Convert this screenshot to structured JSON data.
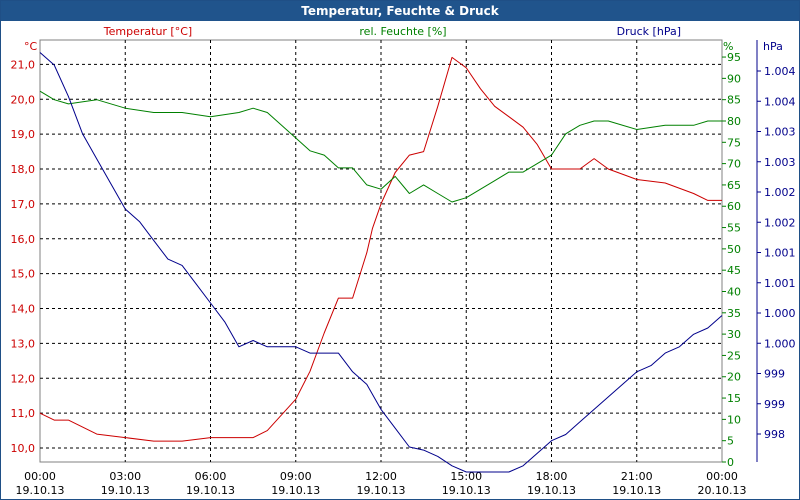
{
  "chart_data": {
    "type": "line",
    "title": "Temperatur, Feuchte & Druck",
    "x": {
      "labels": [
        [
          "00:00",
          "19.10.13"
        ],
        [
          "03:00",
          "19.10.13"
        ],
        [
          "06:00",
          "19.10.13"
        ],
        [
          "09:00",
          "19.10.13"
        ],
        [
          "12:00",
          "19.10.13"
        ],
        [
          "15:00",
          "19.10.13"
        ],
        [
          "18:00",
          "19.10.13"
        ],
        [
          "21:00",
          "19.10.13"
        ],
        [
          "00:00",
          "20.10.13"
        ]
      ],
      "range_hours": [
        0,
        24
      ]
    },
    "axes": {
      "temperature": {
        "unit": "°C",
        "label": "Temperatur [°C]",
        "ticks": [
          "10,0",
          "11,0",
          "12,0",
          "13,0",
          "14,0",
          "15,0",
          "16,0",
          "17,0",
          "18,0",
          "19,0",
          "20,0",
          "21,0"
        ],
        "range": [
          9.6,
          21.7
        ],
        "color": "#cc0000"
      },
      "humidity": {
        "unit": "%",
        "label": "rel. Feuchte [%]",
        "ticks": [
          "0",
          "5",
          "10",
          "15",
          "20",
          "25",
          "30",
          "35",
          "40",
          "45",
          "50",
          "55",
          "60",
          "65",
          "70",
          "75",
          "80",
          "85",
          "90",
          "95"
        ],
        "range": [
          0,
          99
        ],
        "color": "#008000"
      },
      "pressure": {
        "unit": "hPa",
        "label": "Druck [hPa]",
        "ticks": [
          "998",
          "999",
          "999",
          "1.000",
          "1.000",
          "1.001",
          "1.001",
          "1.002",
          "1.002",
          "1.003",
          "1.003",
          "1.004",
          "1.004"
        ],
        "range": [
          997.76,
          1004.5
        ],
        "color": "#00008b"
      }
    },
    "grid": true,
    "series": [
      {
        "name": "Temperatur [°C]",
        "color": "#cc0000",
        "x": [
          0,
          0.5,
          1,
          2,
          3,
          4,
          5,
          6,
          7,
          7.5,
          8,
          9,
          9.5,
          10,
          10.5,
          11,
          11.5,
          11.7,
          12,
          12.5,
          13,
          13.5,
          14,
          14.5,
          15,
          15.5,
          16,
          16.5,
          17,
          17.5,
          18,
          19,
          19.5,
          20,
          21,
          22,
          23,
          23.5,
          24
        ],
        "y": [
          11.0,
          10.8,
          10.8,
          10.4,
          10.3,
          10.2,
          10.2,
          10.3,
          10.3,
          10.3,
          10.5,
          11.4,
          12.2,
          13.3,
          14.3,
          14.3,
          15.6,
          16.3,
          17.0,
          17.9,
          18.4,
          18.5,
          19.8,
          21.2,
          20.9,
          20.3,
          19.8,
          19.5,
          19.2,
          18.7,
          18.0,
          18.0,
          18.3,
          18.0,
          17.7,
          17.6,
          17.3,
          17.1,
          17.1
        ]
      },
      {
        "name": "rel. Feuchte [%]",
        "color": "#008000",
        "x": [
          0,
          0.5,
          1,
          2,
          3,
          4,
          5,
          6,
          7,
          7.5,
          8,
          9,
          9.5,
          10,
          10.5,
          11,
          11.5,
          12,
          12.5,
          13,
          13.5,
          14,
          14.5,
          15,
          15.5,
          16,
          16.5,
          17,
          17.5,
          18,
          18.5,
          19,
          19.5,
          20,
          21,
          22,
          23,
          23.5,
          24
        ],
        "y": [
          87,
          85,
          84,
          85,
          83,
          82,
          82,
          81,
          82,
          83,
          82,
          76,
          73,
          72,
          69,
          69,
          65,
          64,
          67,
          63,
          65,
          63,
          61,
          62,
          64,
          66,
          68,
          68,
          70,
          72,
          77,
          79,
          80,
          80,
          78,
          79,
          79,
          80,
          80
        ]
      },
      {
        "name": "Druck [hPa]",
        "color": "#00008b",
        "x": [
          0,
          0.5,
          1,
          1.5,
          2,
          2.5,
          3,
          3.5,
          4,
          4.5,
          5,
          5.5,
          6,
          6.5,
          7,
          7.5,
          8,
          8.5,
          9,
          9.5,
          10,
          10.5,
          11,
          11.5,
          12,
          12.5,
          13,
          13.5,
          14,
          14.5,
          15,
          15.5,
          16,
          16.5,
          17,
          17.5,
          18,
          18.5,
          19,
          19.5,
          20,
          20.5,
          21,
          21.5,
          22,
          22.5,
          23,
          23.5,
          24
        ],
        "y": [
          1004.3,
          1004.1,
          1003.6,
          1003.0,
          1002.6,
          1002.2,
          1001.8,
          1001.6,
          1001.3,
          1001.0,
          1000.9,
          1000.6,
          1000.3,
          1000.0,
          999.6,
          999.7,
          999.6,
          999.6,
          999.6,
          999.5,
          999.5,
          999.5,
          999.2,
          999.0,
          998.6,
          998.3,
          998.0,
          997.95,
          997.85,
          997.7,
          997.6,
          997.6,
          997.6,
          997.6,
          997.7,
          997.9,
          998.1,
          998.2,
          998.4,
          998.6,
          998.8,
          999.0,
          999.2,
          999.3,
          999.5,
          999.6,
          999.8,
          999.9,
          1000.1
        ]
      }
    ]
  }
}
